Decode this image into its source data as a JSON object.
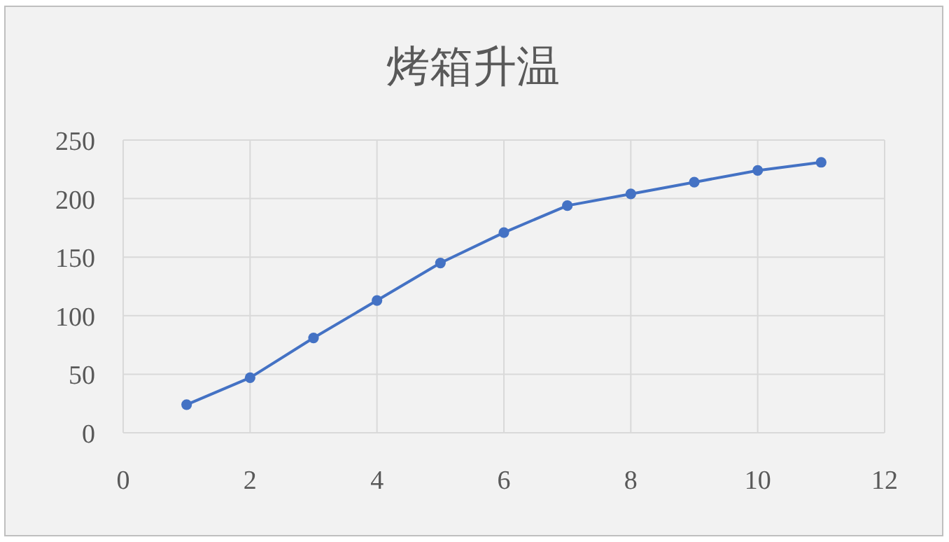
{
  "chart_data": {
    "type": "line",
    "title": "烤箱升温",
    "x": [
      1,
      2,
      3,
      4,
      5,
      6,
      7,
      8,
      9,
      10,
      11
    ],
    "values": [
      24,
      47,
      81,
      113,
      145,
      171,
      194,
      204,
      214,
      224,
      231
    ],
    "color": "#4472c4",
    "marker": "circle",
    "line_style": "solid",
    "grid": true,
    "xlim": [
      0,
      12
    ],
    "xticks": [
      0,
      2,
      4,
      6,
      8,
      10,
      12
    ],
    "ylim": [
      0,
      250
    ],
    "yticks": [
      0,
      50,
      100,
      150,
      200,
      250
    ]
  }
}
